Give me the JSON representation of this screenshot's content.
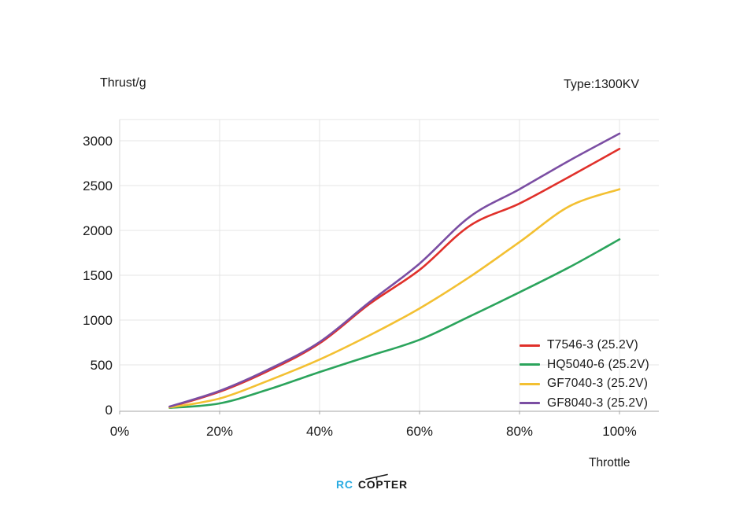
{
  "header": {
    "y_axis_title": "Thrust/g",
    "type_label": "Type:1300KV",
    "x_axis_title": "Throttle"
  },
  "logo": {
    "part1": "RC",
    "part2": "COPTER",
    "accent_color": "#29abe2",
    "dark_color": "#1a1a1a"
  },
  "colors": {
    "gridline": "#e4e4e4",
    "axis_left": "#d9d9d9",
    "axis_bottom": "#a6a6a6",
    "tick_mark": "#a6a6a6",
    "text": "#1a1a1a"
  },
  "chart_data": {
    "type": "line",
    "title": "",
    "xlabel": "Throttle",
    "ylabel": "Thrust/g",
    "x": [
      10,
      20,
      30,
      40,
      50,
      60,
      70,
      80,
      90,
      100
    ],
    "x_unit": "%",
    "xlim": [
      0,
      100
    ],
    "ylim": [
      0,
      3000
    ],
    "x_ticks": [
      "0%",
      "20%",
      "40%",
      "60%",
      "80%",
      "100%"
    ],
    "x_tick_values": [
      0,
      20,
      40,
      60,
      80,
      100
    ],
    "y_ticks": [
      "0",
      "500",
      "1000",
      "1500",
      "2000",
      "2500",
      "3000"
    ],
    "y_tick_values": [
      0,
      500,
      1000,
      1500,
      2000,
      2500,
      3000
    ],
    "grid": true,
    "legend_position": "bottom-right",
    "series": [
      {
        "name": "T7546-3 (25.2V)",
        "color": "#e0302a",
        "values": [
          30,
          200,
          440,
          740,
          1180,
          1560,
          2050,
          2300,
          2600,
          2910
        ]
      },
      {
        "name": "HQ5040-6 (25.2V)",
        "color": "#2ba45c",
        "values": [
          20,
          70,
          230,
          420,
          600,
          780,
          1040,
          1310,
          1590,
          1900
        ]
      },
      {
        "name": "GF7040-3 (25.2V)",
        "color": "#f3c032",
        "values": [
          25,
          125,
          330,
          560,
          830,
          1130,
          1480,
          1870,
          2270,
          2460
        ]
      },
      {
        "name": "GF8040-3 (25.2V)",
        "color": "#7b4ea3",
        "values": [
          35,
          210,
          455,
          755,
          1200,
          1630,
          2150,
          2460,
          2780,
          3080
        ]
      }
    ]
  }
}
